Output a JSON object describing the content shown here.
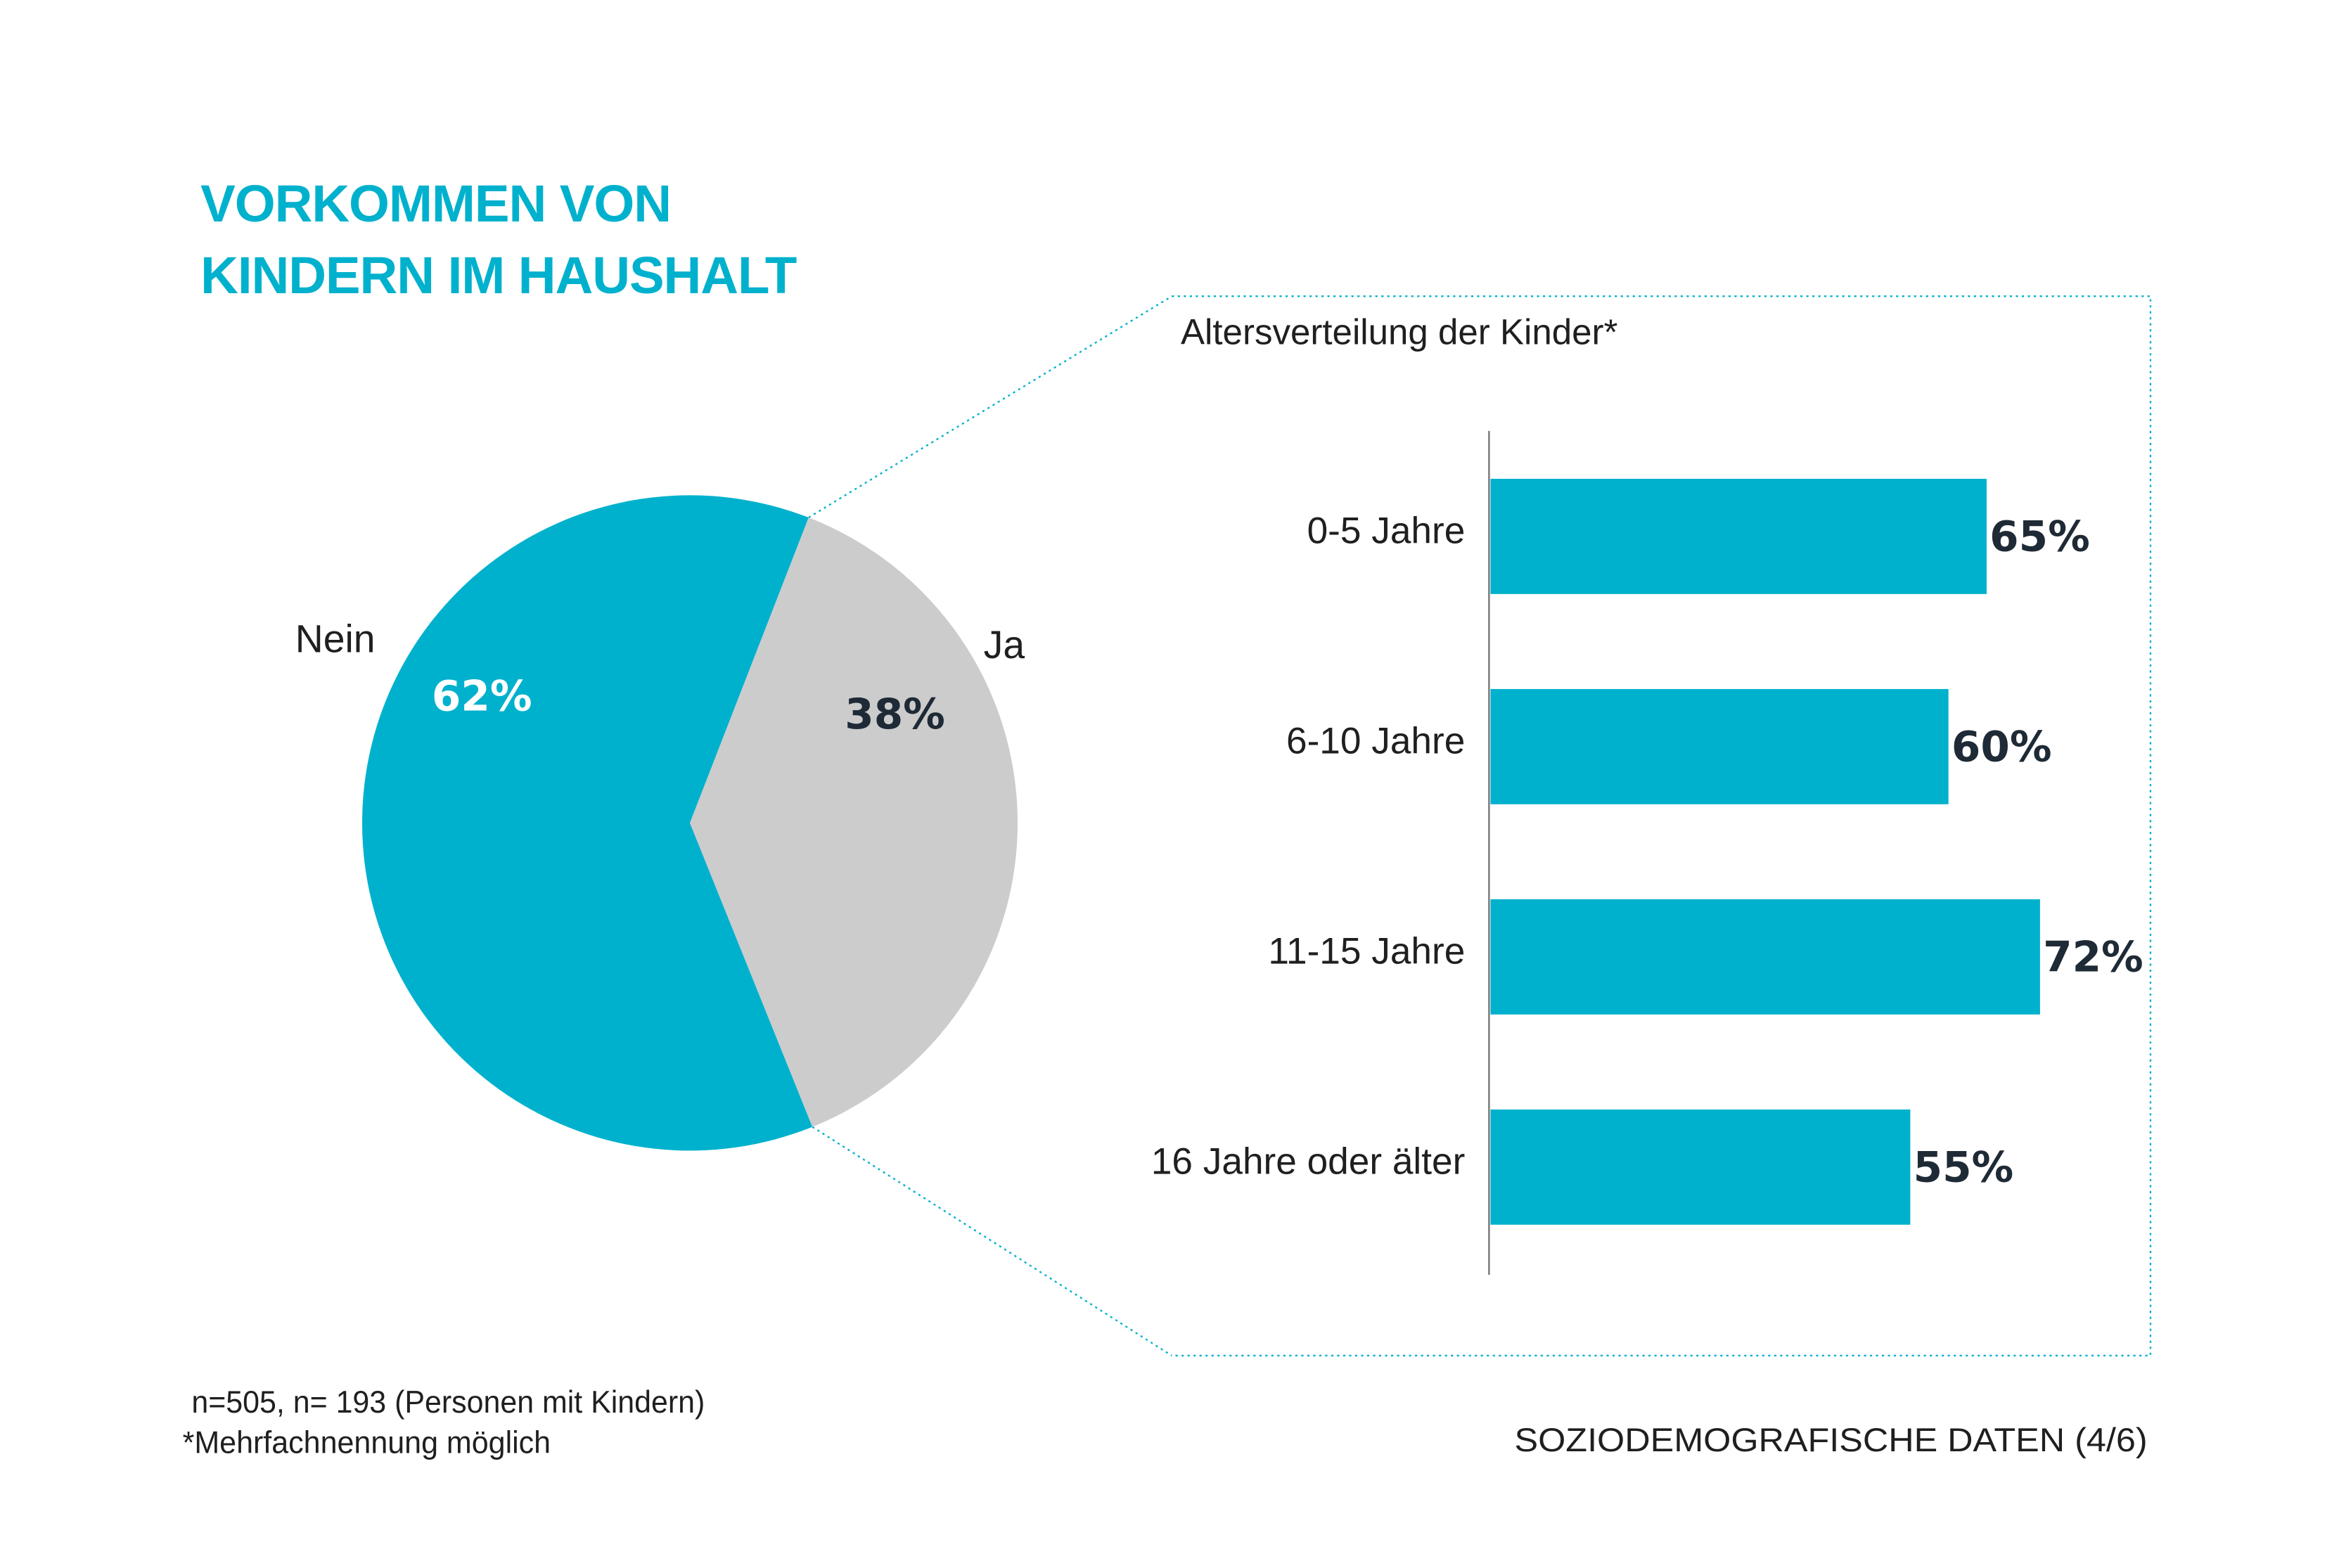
{
  "title_lines": [
    "VORKOMMEN VON",
    "KINDERN IM HAUSHALT"
  ],
  "colors": {
    "accent": "#00b1cd",
    "gray": "#cccccc",
    "dark_text": "#1e2a35",
    "white": "#ffffff"
  },
  "chart_data": [
    {
      "type": "pie",
      "title": "",
      "slices": [
        {
          "label": "Nein",
          "value": 62,
          "value_label": "62%",
          "color": "#00b1cd"
        },
        {
          "label": "Ja",
          "value": 38,
          "value_label": "38%",
          "color": "#cccccc"
        }
      ]
    },
    {
      "type": "bar",
      "orientation": "horizontal",
      "title": "Altersverteilung der Kinder*",
      "categories": [
        "0-5 Jahre",
        "6-10 Jahre",
        "11-15 Jahre",
        "16 Jahre oder älter"
      ],
      "values": [
        65,
        60,
        72,
        55
      ],
      "value_labels": [
        "65%",
        "60%",
        "72%",
        "55%"
      ],
      "xlim": [
        0,
        100
      ],
      "color": "#00b1cd"
    }
  ],
  "footnote": {
    "sample": "n=505, n= 193 (Personen mit Kindern)",
    "note": "*Mehrfachnennung möglich"
  },
  "section_label": "SOZIODEMOGRAFISCHE DATEN (4/6)"
}
